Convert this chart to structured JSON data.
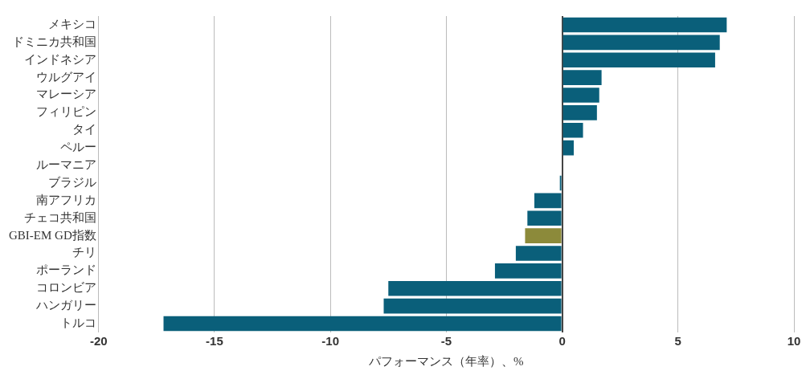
{
  "chart_data": {
    "type": "bar",
    "orientation": "horizontal",
    "xlabel": "パフォーマンス（年率）、%",
    "categories": [
      "メキシコ",
      "ドミニカ共和国",
      "インドネシア",
      "ウルグアイ",
      "マレーシア",
      "フィリピン",
      "タイ",
      "ペルー",
      "ルーマニア",
      "ブラジル",
      "南アフリカ",
      "チェコ共和国",
      "GBI-EM GD指数",
      "チリ",
      "ポーランド",
      "コロンビア",
      "ハンガリー",
      "トルコ"
    ],
    "values": [
      7.1,
      6.8,
      6.6,
      1.7,
      1.6,
      1.5,
      0.9,
      0.5,
      0,
      -0.1,
      -1.2,
      -1.5,
      -1.6,
      -2.0,
      -2.9,
      -7.5,
      -7.7,
      -17.2
    ],
    "colors": [
      "#0a5f7a",
      "#0a5f7a",
      "#0a5f7a",
      "#0a5f7a",
      "#0a5f7a",
      "#0a5f7a",
      "#0a5f7a",
      "#0a5f7a",
      "#0a5f7a",
      "#0a5f7a",
      "#0a5f7a",
      "#0a5f7a",
      "#8c8a3a",
      "#0a5f7a",
      "#0a5f7a",
      "#0a5f7a",
      "#0a5f7a",
      "#0a5f7a"
    ],
    "xlim": [
      -20,
      10
    ],
    "xticks": [
      -20,
      -15,
      -10,
      -5,
      0,
      5,
      10
    ],
    "grid": "x",
    "legend": false
  }
}
